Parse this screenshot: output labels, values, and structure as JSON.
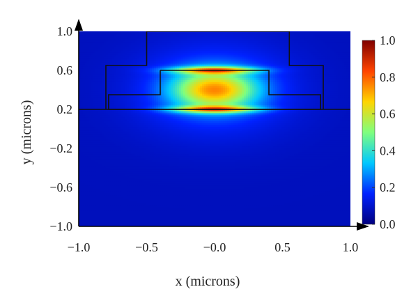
{
  "chart_data": {
    "type": "heatmap",
    "xlabel": "x (microns)",
    "ylabel": "y (microns)",
    "xlim": [
      -1.0,
      1.0
    ],
    "ylim": [
      -1.0,
      1.0
    ],
    "x_ticks": [
      -1.0,
      -0.5,
      0.0,
      0.5,
      1.0
    ],
    "x_tick_labels": [
      "−1.0",
      "−0.5",
      "−0.0",
      "0.5",
      "1.0"
    ],
    "y_ticks": [
      1.0,
      0.6,
      0.2,
      -0.2,
      -0.6,
      -1.0
    ],
    "y_tick_labels": [
      "1.0",
      "0.6",
      "0.2",
      "−0.2",
      "−0.6",
      "−1.0"
    ],
    "colorbar": {
      "range": [
        0.0,
        1.0
      ],
      "ticks": [
        1.0,
        0.8,
        0.6,
        0.4,
        0.2,
        0.0
      ],
      "tick_labels": [
        "1.0",
        "0.8",
        "0.6",
        "0.4",
        "0.2",
        "0.0"
      ],
      "colormap": [
        "#00007f",
        "#0022ff",
        "#00c8ff",
        "#7fff7f",
        "#ffd400",
        "#ff4400",
        "#7f0000"
      ]
    },
    "field": {
      "background_value": 0.08,
      "mode_center": [
        0.0,
        0.4
      ],
      "mode_core_value": 0.6,
      "peak_value": 1.0,
      "peak_y": [
        0.6,
        0.2
      ]
    },
    "waveguide_outlines": [
      [
        [
          -0.4,
          0.6
        ],
        [
          0.4,
          0.6
        ],
        [
          0.4,
          0.35
        ],
        [
          0.78,
          0.35
        ],
        [
          0.78,
          0.2
        ],
        [
          -0.78,
          0.2
        ],
        [
          -0.78,
          0.35
        ],
        [
          -0.4,
          0.35
        ],
        [
          -0.4,
          0.6
        ]
      ],
      [
        [
          -0.8,
          0.2
        ],
        [
          -0.8,
          0.65
        ],
        [
          -0.5,
          0.65
        ],
        [
          -0.5,
          1.0
        ],
        [
          0.55,
          1.0
        ],
        [
          0.55,
          0.65
        ],
        [
          0.8,
          0.65
        ],
        [
          0.8,
          0.2
        ]
      ],
      [
        [
          -1.0,
          0.2
        ],
        [
          1.0,
          0.2
        ]
      ]
    ],
    "grid": false
  },
  "colors": {
    "axis": "#000000",
    "outline": "#111111"
  }
}
